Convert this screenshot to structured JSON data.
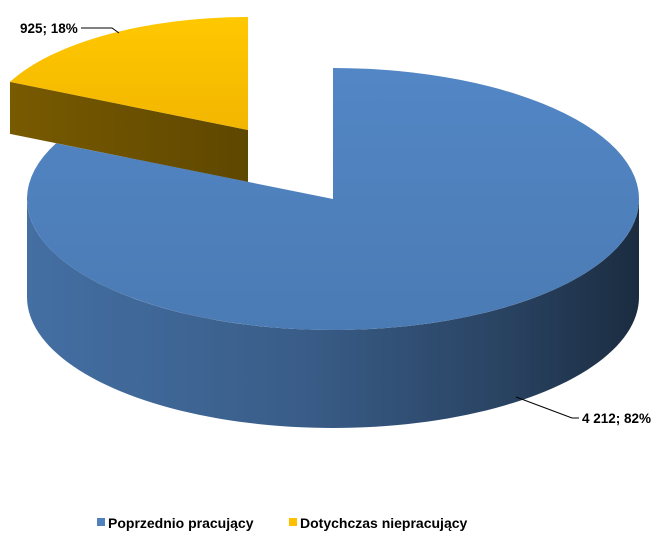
{
  "chart_data": {
    "type": "pie",
    "three_d": true,
    "categories": [
      "Poprzednio pracujący",
      "Dotychczas niepracujący"
    ],
    "values": [
      4212,
      925
    ],
    "data_labels": [
      "4 212; 82%",
      "925; 18%"
    ],
    "colors": [
      "#4F81BD",
      "#FFC000"
    ],
    "exploded": [
      false,
      true
    ],
    "legend_position": "bottom"
  }
}
